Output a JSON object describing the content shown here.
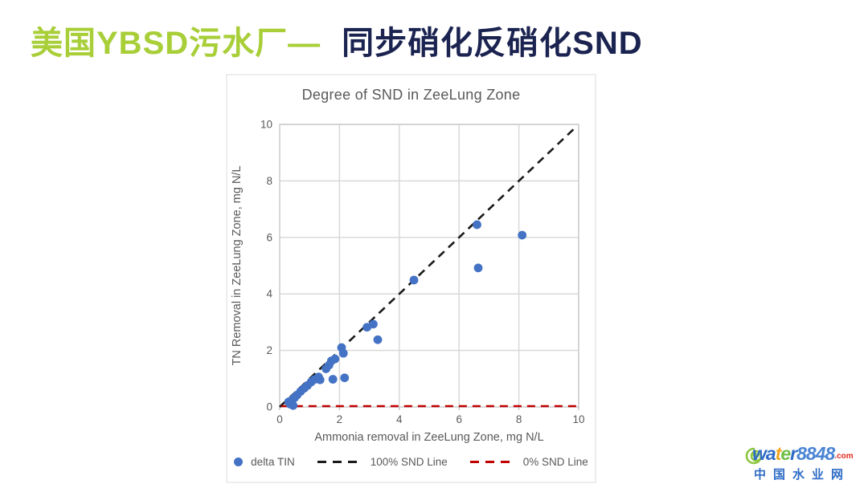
{
  "header": {
    "title_green": "美国YBSD污水厂—",
    "title_dark": "同步硝化反硝化SND",
    "green_color": "#a8ce38",
    "dark_color": "#1b2350"
  },
  "chart_data": {
    "type": "scatter",
    "title": "Degree of SND in ZeeLung Zone",
    "xlabel": "Ammonia removal in ZeeLung Zone, mg N/L",
    "ylabel": "TN Removal in ZeeLung Zone, mg N/L",
    "xlim": [
      0,
      10
    ],
    "ylim": [
      0,
      10
    ],
    "xticks": [
      0,
      2,
      4,
      6,
      8,
      10
    ],
    "yticks": [
      0,
      2,
      4,
      6,
      8,
      10
    ],
    "grid": true,
    "legend_position": "bottom",
    "series": [
      {
        "name": "delta TIN",
        "kind": "scatter",
        "color": "#4472c4",
        "points": [
          [
            0.3,
            0.18
          ],
          [
            0.35,
            0.1
          ],
          [
            0.42,
            0.25
          ],
          [
            0.45,
            0.05
          ],
          [
            0.5,
            0.33
          ],
          [
            0.58,
            0.42
          ],
          [
            0.7,
            0.55
          ],
          [
            0.82,
            0.66
          ],
          [
            0.93,
            0.76
          ],
          [
            1.05,
            0.88
          ],
          [
            1.16,
            0.97
          ],
          [
            1.3,
            1.06
          ],
          [
            1.35,
            0.96
          ],
          [
            1.55,
            1.35
          ],
          [
            1.65,
            1.48
          ],
          [
            1.73,
            1.63
          ],
          [
            1.85,
            1.7
          ],
          [
            1.78,
            0.98
          ],
          [
            2.07,
            2.1
          ],
          [
            2.13,
            1.9
          ],
          [
            2.17,
            1.03
          ],
          [
            2.92,
            2.82
          ],
          [
            3.13,
            2.93
          ],
          [
            3.28,
            2.38
          ],
          [
            4.49,
            4.49
          ],
          [
            6.6,
            6.45
          ],
          [
            6.64,
            4.92
          ],
          [
            8.11,
            6.08
          ]
        ]
      },
      {
        "name": "100% SND Line",
        "kind": "line",
        "style": "dashed",
        "color": "#1a1a1a",
        "from": [
          0,
          0
        ],
        "to": [
          9.85,
          9.85
        ]
      },
      {
        "name": "0% SND Line",
        "kind": "line",
        "style": "dashed",
        "color": "#c00000",
        "from": [
          0.05,
          0
        ],
        "to": [
          10,
          0
        ]
      }
    ],
    "colors": {
      "grid": "#d6d6d6",
      "plot_border": "#cfcfcf",
      "axis_text": "#595959",
      "tick_mark": "#bfbfbf"
    }
  },
  "watermark": {
    "brand_letters": [
      {
        "ch": "w",
        "color": "#2e6bc6"
      },
      {
        "ch": "a",
        "color": "#2e6bc6"
      },
      {
        "ch": "t",
        "color": "#f5a623"
      },
      {
        "ch": "e",
        "color": "#6dbe45"
      },
      {
        "ch": "r",
        "color": "#2e6bc6"
      },
      {
        "ch": "8",
        "color": "#4a84d4"
      },
      {
        "ch": "8",
        "color": "#4a84d4"
      },
      {
        "ch": "4",
        "color": "#4a84d4"
      },
      {
        "ch": "8",
        "color": "#4a84d4"
      }
    ],
    "suffix": ".com",
    "suffix_color": "#e02b20",
    "site_name": "中国水业网",
    "site_name_color": "#2e6bc6",
    "spiral_color": "#8dc63f"
  }
}
